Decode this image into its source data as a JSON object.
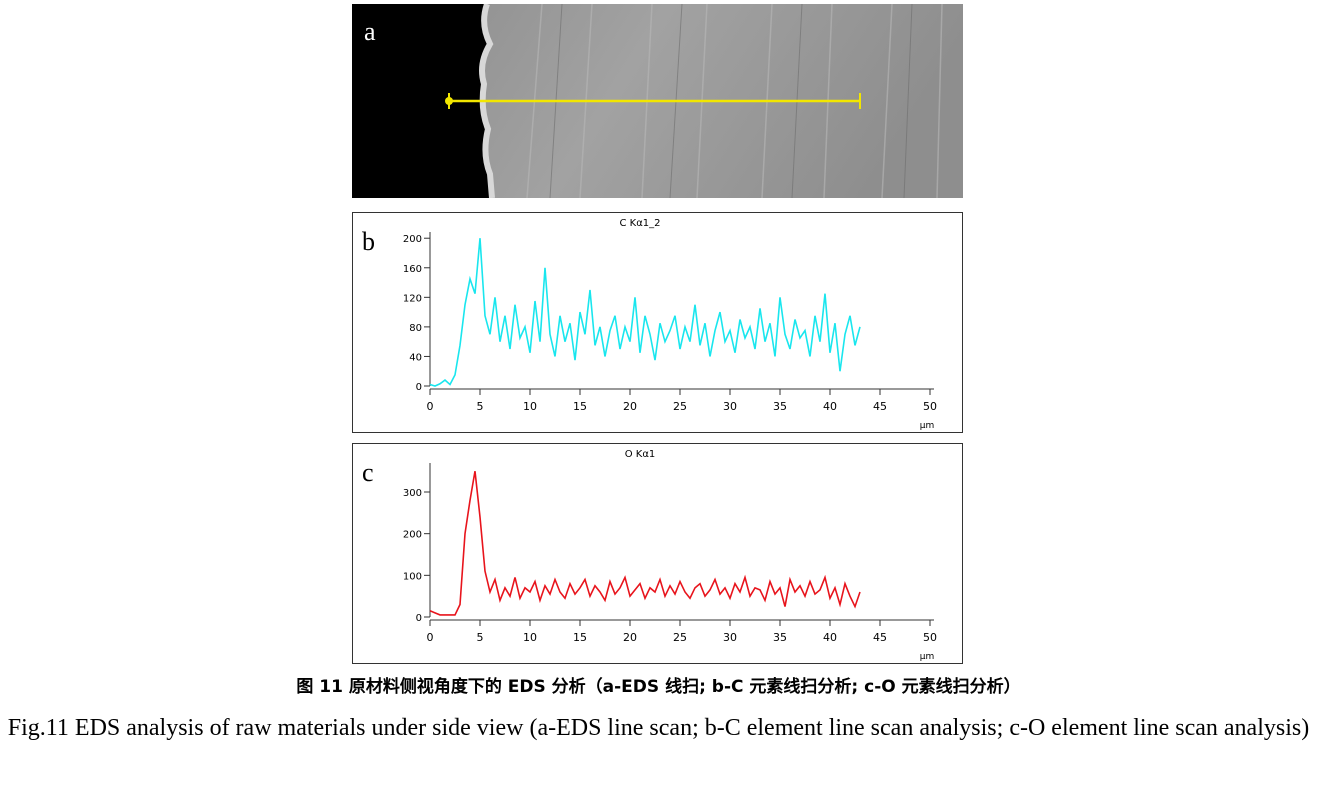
{
  "image": {
    "label": "a"
  },
  "chart_data": [
    {
      "type": "line",
      "panel": "b",
      "title": "C Kα1_2",
      "x_label": "μm",
      "x": [
        0,
        0.5,
        1,
        1.5,
        2,
        2.5,
        3,
        3.5,
        4,
        4.5,
        5,
        5.5,
        6,
        6.5,
        7,
        7.5,
        8,
        8.5,
        9,
        9.5,
        10,
        10.5,
        11,
        11.5,
        12,
        12.5,
        13,
        13.5,
        14,
        14.5,
        15,
        15.5,
        16,
        16.5,
        17,
        17.5,
        18,
        18.5,
        19,
        19.5,
        20,
        20.5,
        21,
        21.5,
        22,
        22.5,
        23,
        23.5,
        24,
        24.5,
        25,
        25.5,
        26,
        26.5,
        27,
        27.5,
        28,
        28.5,
        29,
        29.5,
        30,
        30.5,
        31,
        31.5,
        32,
        32.5,
        33,
        33.5,
        34,
        34.5,
        35,
        35.5,
        36,
        36.5,
        37,
        37.5,
        38,
        38.5,
        39,
        39.5,
        40,
        40.5,
        41,
        41.5,
        42,
        42.5,
        43
      ],
      "series": [
        {
          "name": "C Kα1_2",
          "color": "#19e6ee",
          "values": [
            2,
            0,
            3,
            8,
            2,
            15,
            55,
            110,
            145,
            125,
            200,
            95,
            70,
            120,
            60,
            95,
            50,
            110,
            65,
            80,
            45,
            115,
            60,
            160,
            70,
            40,
            95,
            60,
            85,
            35,
            100,
            70,
            130,
            55,
            80,
            40,
            75,
            95,
            50,
            80,
            60,
            120,
            45,
            95,
            70,
            35,
            85,
            60,
            75,
            95,
            50,
            80,
            60,
            110,
            55,
            85,
            40,
            75,
            100,
            60,
            75,
            45,
            90,
            65,
            80,
            50,
            105,
            60,
            85,
            40,
            120,
            70,
            50,
            90,
            65,
            75,
            40,
            95,
            60,
            125,
            45,
            85,
            20,
            70,
            95,
            55,
            80
          ]
        }
      ],
      "xlim": [
        0,
        50
      ],
      "xticks": [
        0,
        5,
        10,
        15,
        20,
        25,
        30,
        35,
        40,
        45,
        50
      ],
      "ylim": [
        0,
        203
      ],
      "yticks": [
        0,
        40,
        80,
        120,
        160,
        200
      ]
    },
    {
      "type": "line",
      "panel": "c",
      "title": "O Kα1",
      "x_label": "μm",
      "x": [
        0,
        0.5,
        1,
        1.5,
        2,
        2.5,
        3,
        3.5,
        4,
        4.5,
        5,
        5.5,
        6,
        6.5,
        7,
        7.5,
        8,
        8.5,
        9,
        9.5,
        10,
        10.5,
        11,
        11.5,
        12,
        12.5,
        13,
        13.5,
        14,
        14.5,
        15,
        15.5,
        16,
        16.5,
        17,
        17.5,
        18,
        18.5,
        19,
        19.5,
        20,
        20.5,
        21,
        21.5,
        22,
        22.5,
        23,
        23.5,
        24,
        24.5,
        25,
        25.5,
        26,
        26.5,
        27,
        27.5,
        28,
        28.5,
        29,
        29.5,
        30,
        30.5,
        31,
        31.5,
        32,
        32.5,
        33,
        33.5,
        34,
        34.5,
        35,
        35.5,
        36,
        36.5,
        37,
        37.5,
        38,
        38.5,
        39,
        39.5,
        40,
        40.5,
        41,
        41.5,
        42,
        42.5,
        43
      ],
      "series": [
        {
          "name": "O Kα1",
          "color": "#e8141c",
          "values": [
            15,
            10,
            5,
            5,
            5,
            5,
            30,
            200,
            280,
            350,
            240,
            110,
            60,
            90,
            40,
            70,
            50,
            95,
            45,
            70,
            60,
            85,
            40,
            75,
            55,
            90,
            60,
            45,
            80,
            55,
            70,
            90,
            50,
            75,
            60,
            40,
            85,
            55,
            70,
            95,
            50,
            65,
            80,
            45,
            70,
            60,
            90,
            50,
            75,
            55,
            85,
            60,
            45,
            70,
            80,
            50,
            65,
            90,
            55,
            70,
            45,
            80,
            60,
            95,
            50,
            70,
            65,
            40,
            85,
            55,
            70,
            25,
            90,
            60,
            75,
            50,
            85,
            55,
            65,
            95,
            45,
            70,
            30,
            80,
            50,
            25,
            60
          ]
        }
      ],
      "xlim": [
        0,
        50
      ],
      "xticks": [
        0,
        5,
        10,
        15,
        20,
        25,
        30,
        35,
        40,
        45,
        50
      ],
      "ylim": [
        0,
        360
      ],
      "yticks": [
        0,
        100,
        200,
        300
      ]
    }
  ],
  "caption": {
    "cn": "图 11  原材料侧视角度下的 EDS 分析（a-EDS 线扫; b-C 元素线扫分析; c-O 元素线扫分析）",
    "en": "Fig.11 EDS analysis of raw materials under side view (a-EDS line scan; b-C element line scan analysis; c-O element line scan analysis)"
  }
}
